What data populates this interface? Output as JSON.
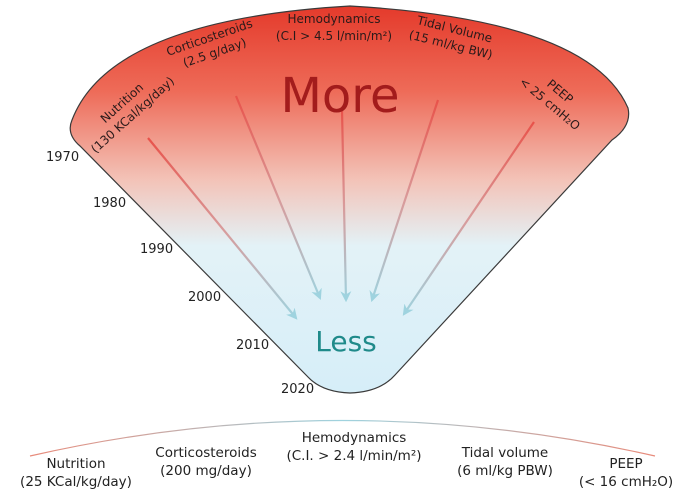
{
  "colors": {
    "top_red": "#e43a2b",
    "bottom_blue": "#d6eef8",
    "more_text": "#a31c1c",
    "less_text": "#1f8a8a",
    "arrow_start": "#e8524a",
    "arrow_end": "#9fd3df"
  },
  "center_labels": {
    "more": "More",
    "less": "Less"
  },
  "years": [
    "1970",
    "1980",
    "1990",
    "2000",
    "2010",
    "2020"
  ],
  "top_labels": [
    {
      "id": "nutrition",
      "line1": "Nutrition",
      "line2": "(130 KCal/kg/day)"
    },
    {
      "id": "corticosteroids",
      "line1": "Corticosteroids",
      "line2": "(2.5 g/day)"
    },
    {
      "id": "hemodynamics",
      "line1": "Hemodynamics",
      "line2": "(C.I > 4.5 l/min/m²)"
    },
    {
      "id": "tidal-volume",
      "line1": "Tidal Volume",
      "line2": "(15 ml/kg BW)"
    },
    {
      "id": "peep",
      "line1": "PEEP",
      "line2": "< 25 cmH₂O"
    }
  ],
  "bottom_labels": [
    {
      "id": "nutrition",
      "line1": "Nutrition",
      "line2": "(25 KCal/kg/day)"
    },
    {
      "id": "corticosteroids",
      "line1": "Corticosteroids",
      "line2": "(200 mg/day)"
    },
    {
      "id": "hemodynamics",
      "line1": "Hemodynamics",
      "line2": "(C.I. > 2.4 l/min/m²)"
    },
    {
      "id": "tidal-volume",
      "line1": "Tidal volume",
      "line2": "(6 ml/kg PBW)"
    },
    {
      "id": "peep",
      "line1": "PEEP",
      "line2": "(< 16 cmH₂O)"
    }
  ]
}
